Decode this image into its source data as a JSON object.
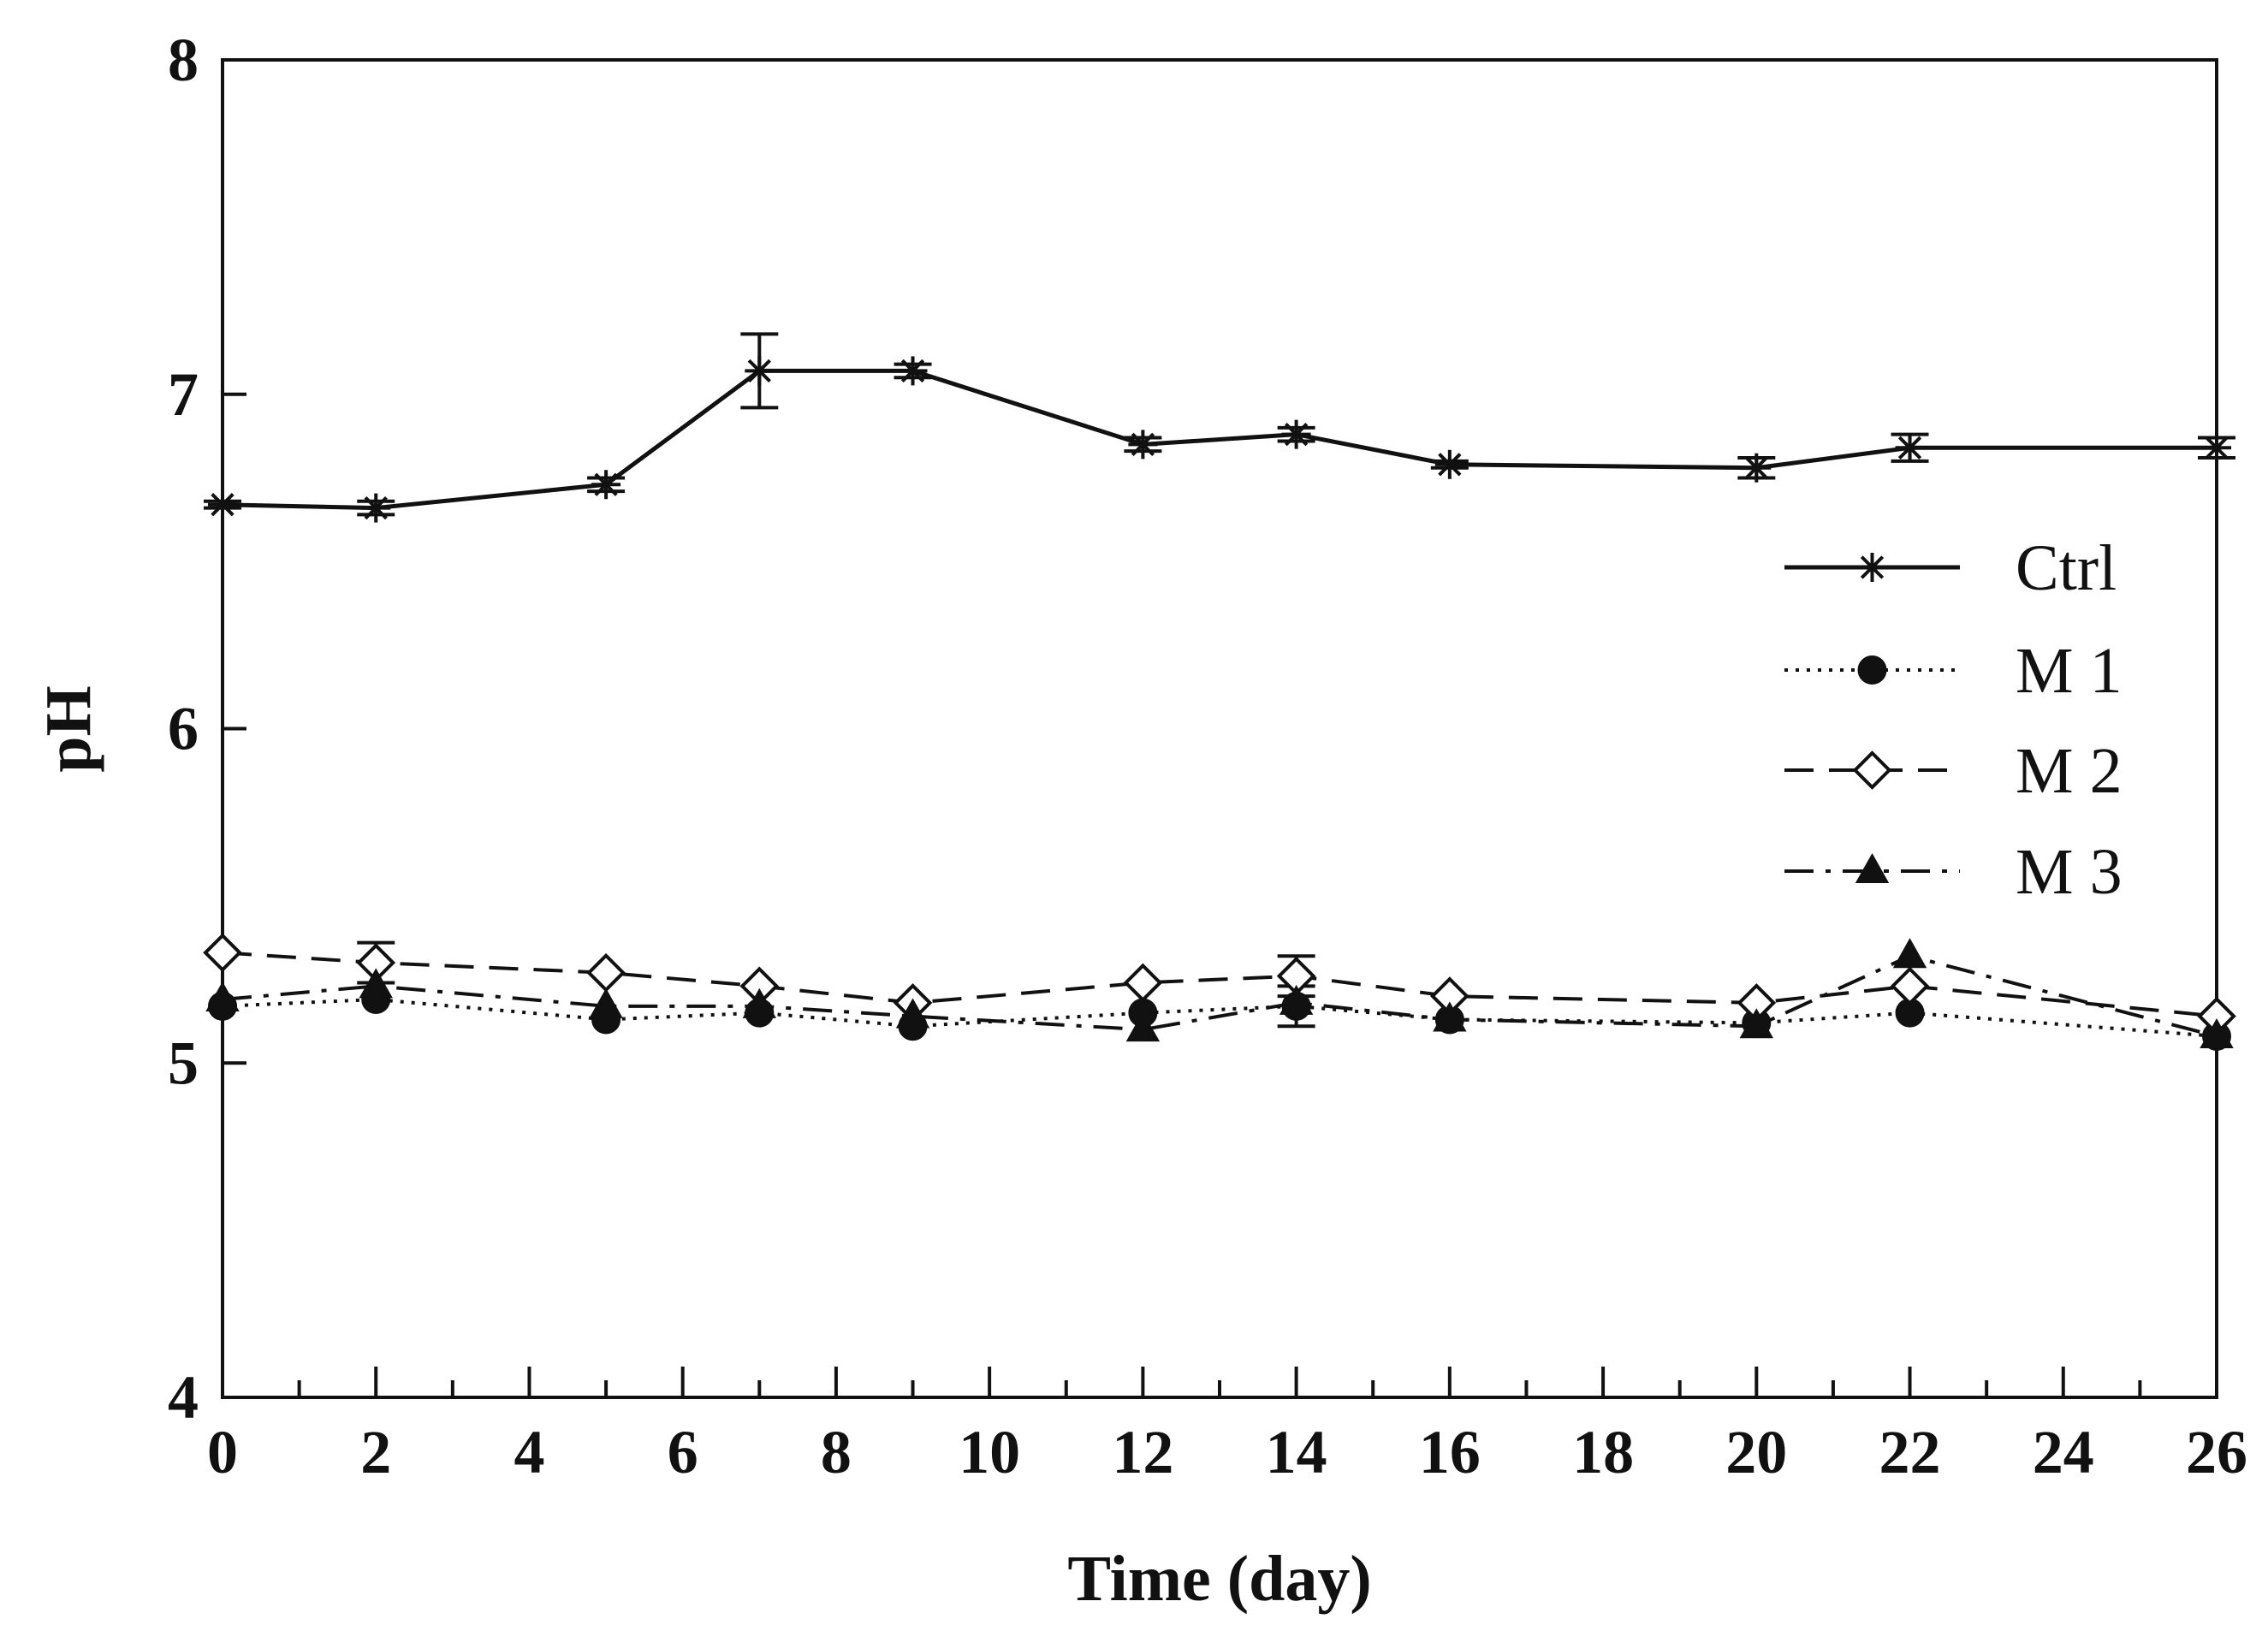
{
  "chart_data": {
    "type": "line",
    "title": "",
    "xlabel": "Time (day)",
    "ylabel": "pH",
    "xlim": [
      0,
      26
    ],
    "ylim": [
      4,
      8
    ],
    "xticks": [
      0,
      2,
      4,
      6,
      8,
      10,
      12,
      14,
      16,
      18,
      20,
      22,
      24,
      26
    ],
    "xtick_labels": [
      "0",
      "2",
      "4",
      "6",
      "8",
      "10",
      "12",
      "14",
      "16",
      "18",
      "20",
      "22",
      "24",
      "26"
    ],
    "yticks": [
      4,
      5,
      6,
      7,
      8
    ],
    "ytick_labels": [
      "4",
      "5",
      "6",
      "7",
      "8"
    ],
    "grid": false,
    "legend_position": "right",
    "x": [
      0,
      2,
      5,
      7,
      9,
      12,
      14,
      16,
      20,
      22,
      26
    ],
    "series": [
      {
        "name": "Ctrl",
        "marker": "asterisk",
        "line": "solid",
        "values": [
          6.67,
          6.66,
          6.73,
          7.07,
          7.07,
          6.85,
          6.88,
          6.79,
          6.78,
          6.84,
          6.84
        ],
        "errors": [
          0.01,
          0.02,
          0.02,
          0.11,
          0.02,
          0.02,
          0.02,
          0.01,
          0.03,
          0.04,
          0.03
        ]
      },
      {
        "name": "M 1",
        "marker": "filled-circle",
        "line": "dotted",
        "values": [
          5.17,
          5.19,
          5.13,
          5.15,
          5.11,
          5.15,
          5.17,
          5.13,
          5.12,
          5.15,
          5.08
        ],
        "errors": [
          0,
          0,
          0,
          0,
          0,
          0,
          0.06,
          0,
          0,
          0,
          0
        ]
      },
      {
        "name": "M 2",
        "marker": "open-diamond",
        "line": "dashed",
        "values": [
          5.33,
          5.3,
          5.27,
          5.23,
          5.18,
          5.24,
          5.26,
          5.2,
          5.18,
          5.23,
          5.14
        ],
        "errors": [
          0,
          0.06,
          0,
          0,
          0,
          0,
          0.06,
          0,
          0,
          0,
          0
        ]
      },
      {
        "name": "M 3",
        "marker": "filled-triangle",
        "line": "dashdot",
        "values": [
          5.19,
          5.23,
          5.17,
          5.17,
          5.14,
          5.1,
          5.18,
          5.13,
          5.11,
          5.32,
          5.08
        ],
        "errors": [
          0,
          0,
          0,
          0,
          0,
          0,
          0,
          0,
          0,
          0,
          0
        ]
      }
    ]
  }
}
